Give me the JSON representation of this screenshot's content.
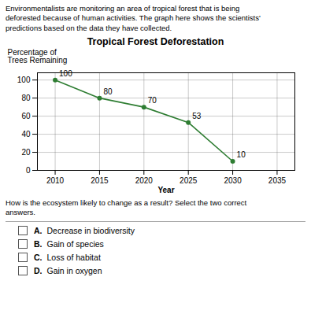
{
  "chart_data": {
    "type": "line",
    "title": "Tropical Forest Deforestation",
    "subtitle": "Environmentalists are monitoring an area of tropical forest that is being\ndeforested because of human activities. The graph here shows the scientists'\npredictions based on the data they have collected.",
    "xlabel": "Year",
    "ylabel": "Percentage of\nTrees Remaining",
    "x": [
      2010,
      2015,
      2020,
      2025,
      2030
    ],
    "values": [
      100,
      80,
      70,
      53,
      10
    ],
    "color": "#2e7d32",
    "marker": "circle",
    "xlim": [
      2008,
      2037
    ],
    "ylim": [
      0,
      108
    ],
    "xticks": [
      2010,
      2015,
      2020,
      2025,
      2030,
      2035
    ],
    "yticks": [
      0,
      20,
      40,
      60,
      80,
      100
    ],
    "grid": true,
    "data_labels": true,
    "annotations": [
      "How is the ecosystem likely to change as a result? Select the two correct\nanswers.",
      "A. Decrease in biodiversity",
      "B. Gain of species",
      "C. Loss of habitat",
      "D. Gain in oxygen"
    ]
  }
}
